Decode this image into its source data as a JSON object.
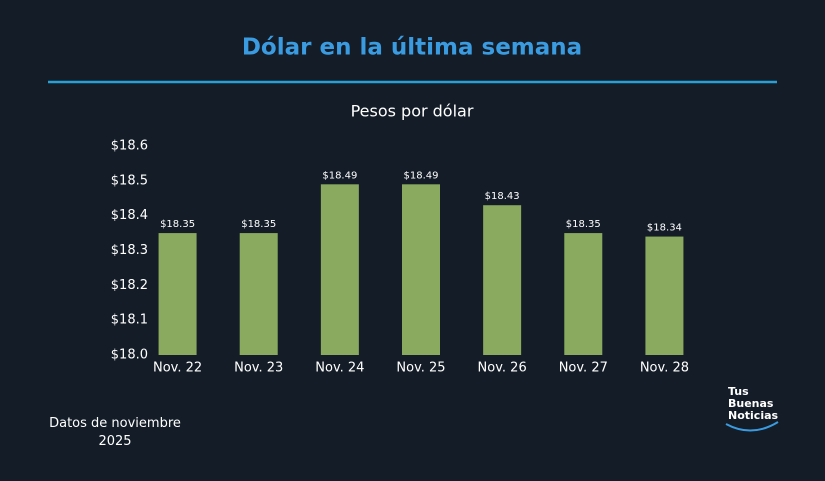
{
  "chart_data": {
    "type": "bar",
    "title": "Dólar en la última semana",
    "subtitle": "Pesos por dólar",
    "categories": [
      "Nov. 22",
      "Nov. 23",
      "Nov. 24",
      "Nov. 25",
      "Nov. 26",
      "Nov. 27",
      "Nov. 28"
    ],
    "values": [
      18.35,
      18.35,
      18.49,
      18.49,
      18.43,
      18.35,
      18.34
    ],
    "value_labels": [
      "$18.35",
      "$18.35",
      "$18.49",
      "$18.49",
      "$18.43",
      "$18.35",
      "$18.34"
    ],
    "color": "#8aab5f",
    "ylim": [
      18.0,
      18.6
    ],
    "yticks": [
      {
        "value": 18.0,
        "label": "$18.0"
      },
      {
        "value": 18.1,
        "label": "$18.1"
      },
      {
        "value": 18.2,
        "label": "$18.2"
      },
      {
        "value": 18.3,
        "label": "$18.3"
      },
      {
        "value": 18.4,
        "label": "$18.4"
      },
      {
        "value": 18.5,
        "label": "$18.5"
      },
      {
        "value": 18.6,
        "label": "$18.6"
      }
    ],
    "grid": false,
    "footnote": "Datos de noviembre 2025",
    "logo": [
      "Tus",
      "Buenas",
      "Noticias"
    ]
  }
}
